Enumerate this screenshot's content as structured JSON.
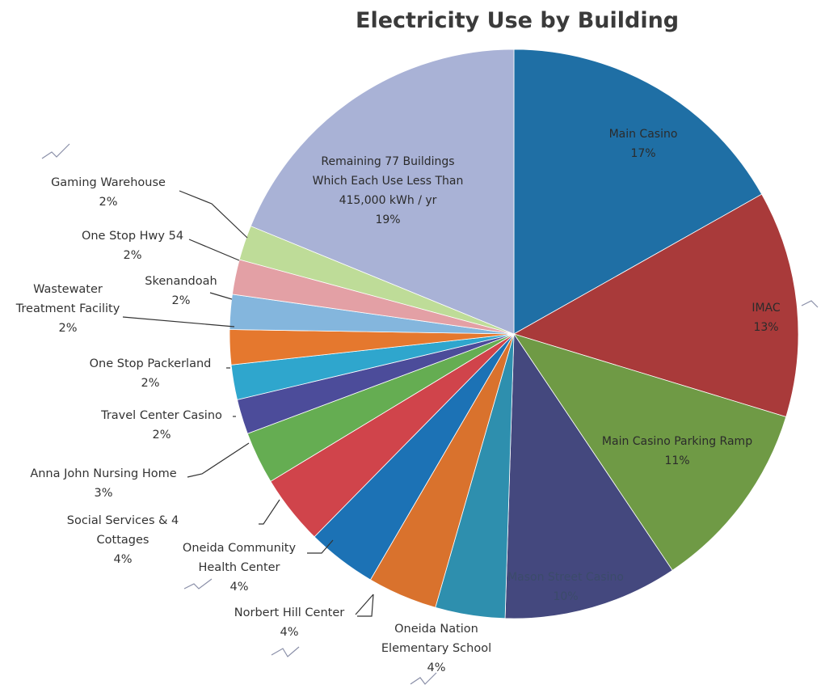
{
  "chart_data": {
    "type": "pie",
    "title": "Electricity Use by Building",
    "start_angle_deg": 0,
    "direction": "clockwise",
    "slices": [
      {
        "label": "Main Casino",
        "value": 17,
        "pct_label": "17%",
        "color": "#1f6fa5",
        "label_pos": "inside"
      },
      {
        "label": "IMAC",
        "value": 13,
        "pct_label": "13%",
        "color": "#a93a3a",
        "label_pos": "inside"
      },
      {
        "label": "Main Casino Parking Ramp",
        "value": 11,
        "pct_label": "11%",
        "color": "#6f9a45",
        "label_pos": "inside"
      },
      {
        "label": "Mason Street Casino",
        "value": 10,
        "pct_label": "10%",
        "color": "#44487e",
        "label_pos": "inside"
      },
      {
        "label": "Oneida Nation Elementary School",
        "value": 4,
        "pct_label": "4%",
        "color": "#2e8fae",
        "label_pos": "outside"
      },
      {
        "label": "Norbert Hill Center",
        "value": 4,
        "pct_label": "4%",
        "color": "#d9722d",
        "label_pos": "outside"
      },
      {
        "label": "Oneida Community Health Center",
        "value": 4,
        "pct_label": "4%",
        "color": "#1c72b5",
        "label_pos": "outside"
      },
      {
        "label": "Social Services & 4 Cottages",
        "value": 4,
        "pct_label": "4%",
        "color": "#d0444b",
        "label_pos": "outside"
      },
      {
        "label": "Anna John Nursing Home",
        "value": 3,
        "pct_label": "3%",
        "color": "#65ad52",
        "label_pos": "outside"
      },
      {
        "label": "Travel Center Casino",
        "value": 2,
        "pct_label": "2%",
        "color": "#4c4c9a",
        "label_pos": "outside"
      },
      {
        "label": "One Stop Packerland",
        "value": 2,
        "pct_label": "2%",
        "color": "#2fa6cd",
        "label_pos": "outside"
      },
      {
        "label": "Wastewater Treatment Facility",
        "value": 2,
        "pct_label": "2%",
        "color": "#e5782e",
        "label_pos": "outside"
      },
      {
        "label": "Skenandoah",
        "value": 2,
        "pct_label": "2%",
        "color": "#84b6dd",
        "label_pos": "outside"
      },
      {
        "label": "One Stop Hwy 54",
        "value": 2,
        "pct_label": "2%",
        "color": "#e3a0a5",
        "label_pos": "outside"
      },
      {
        "label": "Gaming Warehouse",
        "value": 2,
        "pct_label": "2%",
        "color": "#bedc98",
        "label_pos": "outside"
      },
      {
        "label": "Remaining 77 Buildings Which Each Use Less Than 415,000 kWh / yr",
        "value": 19,
        "pct_label": "19%",
        "color": "#a9b2d6",
        "label_pos": "inside"
      }
    ]
  }
}
